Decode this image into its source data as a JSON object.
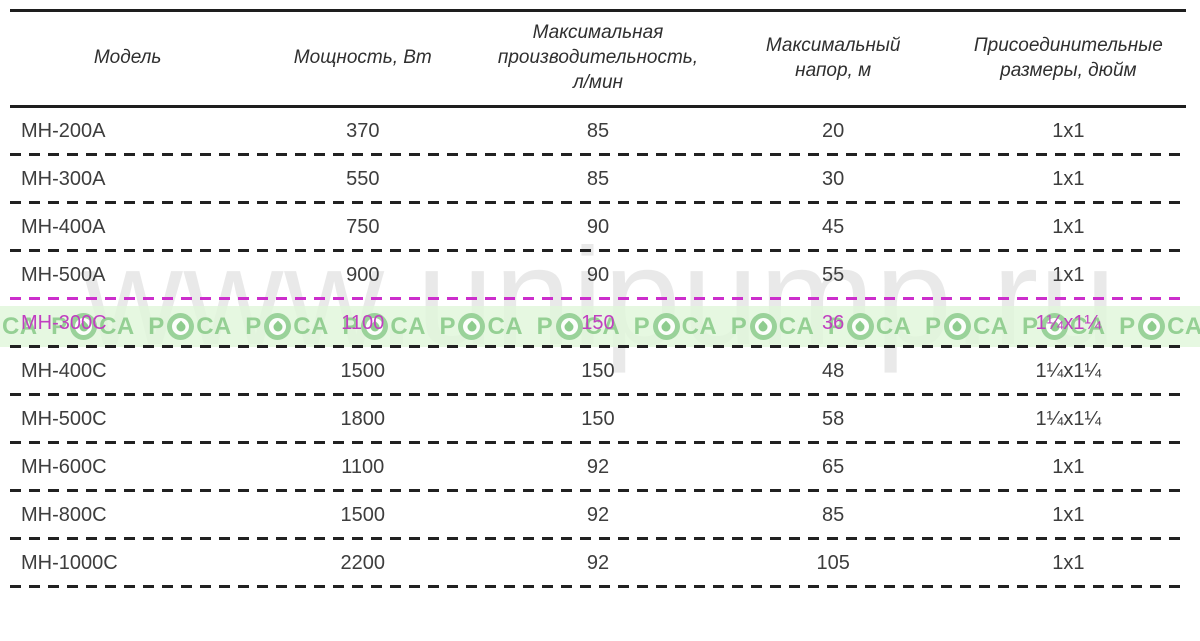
{
  "table": {
    "columns": [
      {
        "key": "model",
        "label": "Модель"
      },
      {
        "key": "power",
        "label": "Мощность, Вт"
      },
      {
        "key": "capacity",
        "label": "Максимальная\nпроизводительность,\nл/мин"
      },
      {
        "key": "head",
        "label": "Максимальный\nнапор, м"
      },
      {
        "key": "size",
        "label": "Присоединительные\nразмеры, дюйм"
      }
    ],
    "rows": [
      {
        "model": "МН-200А",
        "power": "370",
        "capacity": "85",
        "head": "20",
        "size": "1x1",
        "highlight": false
      },
      {
        "model": "МН-300А",
        "power": "550",
        "capacity": "85",
        "head": "30",
        "size": "1x1",
        "highlight": false
      },
      {
        "model": "МН-400А",
        "power": "750",
        "capacity": "90",
        "head": "45",
        "size": "1x1",
        "highlight": false
      },
      {
        "model": "МН-500А",
        "power": "900",
        "capacity": "90",
        "head": "55",
        "size": "1x1",
        "highlight": false
      },
      {
        "model": "МН-300С",
        "power": "1100",
        "capacity": "150",
        "head": "36",
        "size": "1¼x1¼",
        "highlight": true
      },
      {
        "model": "МН-400С",
        "power": "1500",
        "capacity": "150",
        "head": "48",
        "size": "1¼x1¼",
        "highlight": false
      },
      {
        "model": "МН-500С",
        "power": "1800",
        "capacity": "150",
        "head": "58",
        "size": "1¼x1¼",
        "highlight": false
      },
      {
        "model": "МН-600С",
        "power": "1100",
        "capacity": "92",
        "head": "65",
        "size": "1x1",
        "highlight": false
      },
      {
        "model": "МН-800С",
        "power": "1500",
        "capacity": "92",
        "head": "85",
        "size": "1x1",
        "highlight": false
      },
      {
        "model": "МН-1000С",
        "power": "2200",
        "capacity": "92",
        "head": "105",
        "size": "1x1",
        "highlight": false
      }
    ]
  },
  "watermarks": {
    "site": "www.unipump.ru",
    "band_prefix": "Р",
    "band_suffix": "СА"
  },
  "colors": {
    "highlight_text": "#c13fc1",
    "highlight_line": "#cc2ecc",
    "band_green": "#7ac37a",
    "line_black": "#1e1e1e"
  }
}
